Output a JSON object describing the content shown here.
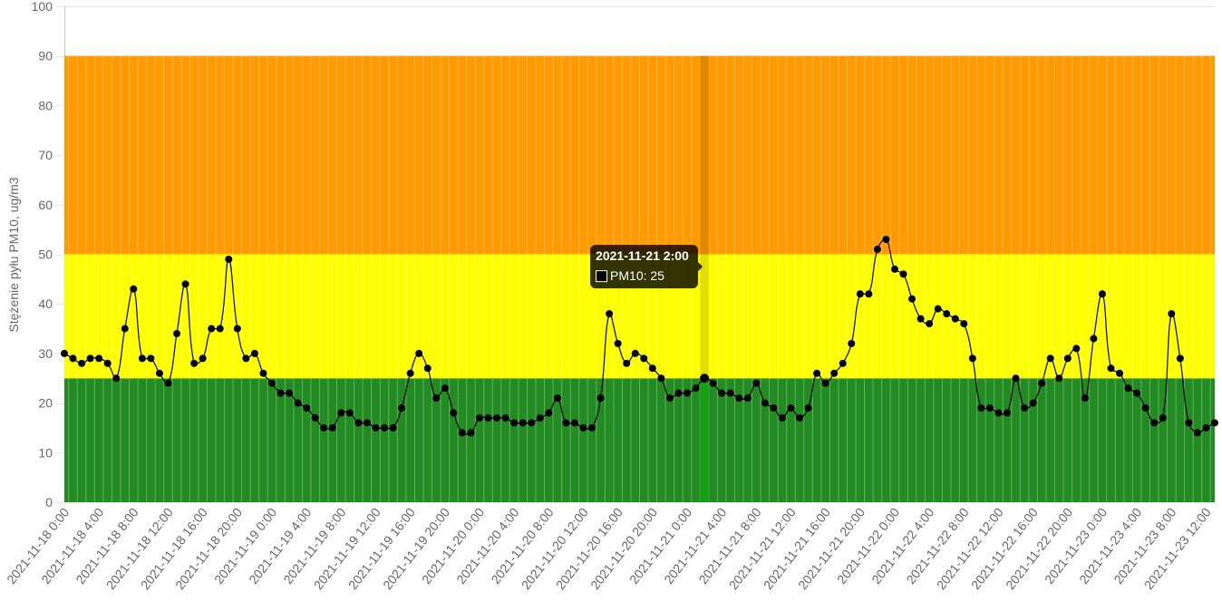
{
  "chart_data": {
    "type": "line",
    "ylabel": "Stężenie pyłu PM10, ug/m3",
    "ylim": [
      0,
      100
    ],
    "y_ticks": [
      0,
      10,
      20,
      30,
      40,
      50,
      60,
      70,
      80,
      90,
      100
    ],
    "y_grid": true,
    "x": [
      "2021-11-18 0:00",
      "2021-11-18 1:00",
      "2021-11-18 2:00",
      "2021-11-18 3:00",
      "2021-11-18 4:00",
      "2021-11-18 5:00",
      "2021-11-18 6:00",
      "2021-11-18 7:00",
      "2021-11-18 8:00",
      "2021-11-18 9:00",
      "2021-11-18 10:00",
      "2021-11-18 11:00",
      "2021-11-18 12:00",
      "2021-11-18 13:00",
      "2021-11-18 14:00",
      "2021-11-18 15:00",
      "2021-11-18 16:00",
      "2021-11-18 17:00",
      "2021-11-18 18:00",
      "2021-11-18 19:00",
      "2021-11-18 20:00",
      "2021-11-18 21:00",
      "2021-11-18 22:00",
      "2021-11-18 23:00",
      "2021-11-19 0:00",
      "2021-11-19 1:00",
      "2021-11-19 2:00",
      "2021-11-19 3:00",
      "2021-11-19 4:00",
      "2021-11-19 5:00",
      "2021-11-19 6:00",
      "2021-11-19 7:00",
      "2021-11-19 8:00",
      "2021-11-19 9:00",
      "2021-11-19 10:00",
      "2021-11-19 11:00",
      "2021-11-19 12:00",
      "2021-11-19 13:00",
      "2021-11-19 14:00",
      "2021-11-19 15:00",
      "2021-11-19 16:00",
      "2021-11-19 17:00",
      "2021-11-19 18:00",
      "2021-11-19 19:00",
      "2021-11-19 20:00",
      "2021-11-19 21:00",
      "2021-11-19 22:00",
      "2021-11-19 23:00",
      "2021-11-20 0:00",
      "2021-11-20 1:00",
      "2021-11-20 2:00",
      "2021-11-20 3:00",
      "2021-11-20 4:00",
      "2021-11-20 5:00",
      "2021-11-20 6:00",
      "2021-11-20 7:00",
      "2021-11-20 8:00",
      "2021-11-20 9:00",
      "2021-11-20 10:00",
      "2021-11-20 11:00",
      "2021-11-20 12:00",
      "2021-11-20 13:00",
      "2021-11-20 14:00",
      "2021-11-20 15:00",
      "2021-11-20 16:00",
      "2021-11-20 17:00",
      "2021-11-20 18:00",
      "2021-11-20 19:00",
      "2021-11-20 20:00",
      "2021-11-20 21:00",
      "2021-11-20 22:00",
      "2021-11-20 23:00",
      "2021-11-21 0:00",
      "2021-11-21 1:00",
      "2021-11-21 2:00",
      "2021-11-21 3:00",
      "2021-11-21 4:00",
      "2021-11-21 5:00",
      "2021-11-21 6:00",
      "2021-11-21 7:00",
      "2021-11-21 8:00",
      "2021-11-21 9:00",
      "2021-11-21 10:00",
      "2021-11-21 11:00",
      "2021-11-21 12:00",
      "2021-11-21 13:00",
      "2021-11-21 14:00",
      "2021-11-21 15:00",
      "2021-11-21 16:00",
      "2021-11-21 17:00",
      "2021-11-21 18:00",
      "2021-11-21 19:00",
      "2021-11-21 20:00",
      "2021-11-21 21:00",
      "2021-11-21 22:00",
      "2021-11-21 23:00",
      "2021-11-22 0:00",
      "2021-11-22 1:00",
      "2021-11-22 2:00",
      "2021-11-22 3:00",
      "2021-11-22 4:00",
      "2021-11-22 5:00",
      "2021-11-22 6:00",
      "2021-11-22 7:00",
      "2021-11-22 8:00",
      "2021-11-22 9:00",
      "2021-11-22 10:00",
      "2021-11-22 11:00",
      "2021-11-22 12:00",
      "2021-11-22 13:00",
      "2021-11-22 14:00",
      "2021-11-22 15:00",
      "2021-11-22 16:00",
      "2021-11-22 17:00",
      "2021-11-22 18:00",
      "2021-11-22 19:00",
      "2021-11-22 20:00",
      "2021-11-22 21:00",
      "2021-11-22 22:00",
      "2021-11-22 23:00",
      "2021-11-23 0:00",
      "2021-11-23 1:00",
      "2021-11-23 2:00",
      "2021-11-23 3:00",
      "2021-11-23 4:00",
      "2021-11-23 5:00",
      "2021-11-23 6:00",
      "2021-11-23 7:00",
      "2021-11-23 8:00",
      "2021-11-23 9:00",
      "2021-11-23 10:00",
      "2021-11-23 11:00",
      "2021-11-23 12:00",
      "2021-11-23 13:00"
    ],
    "x_tick_labels": [
      "2021-11-18 0:00",
      "2021-11-18 4:00",
      "2021-11-18 8:00",
      "2021-11-18 12:00",
      "2021-11-18 16:00",
      "2021-11-18 20:00",
      "2021-11-19 0:00",
      "2021-11-19 4:00",
      "2021-11-19 8:00",
      "2021-11-19 12:00",
      "2021-11-19 16:00",
      "2021-11-19 20:00",
      "2021-11-20 0:00",
      "2021-11-20 4:00",
      "2021-11-20 8:00",
      "2021-11-20 12:00",
      "2021-11-20 16:00",
      "2021-11-20 20:00",
      "2021-11-21 0:00",
      "2021-11-21 4:00",
      "2021-11-21 8:00",
      "2021-11-21 12:00",
      "2021-11-21 16:00",
      "2021-11-21 20:00",
      "2021-11-22 0:00",
      "2021-11-22 4:00",
      "2021-11-22 8:00",
      "2021-11-22 12:00",
      "2021-11-22 16:00",
      "2021-11-22 20:00",
      "2021-11-23 0:00",
      "2021-11-23 4:00",
      "2021-11-23 8:00",
      "2021-11-23 12:00"
    ],
    "series": [
      {
        "name": "PM10",
        "color": "#000000",
        "values": [
          30,
          29,
          28,
          29,
          29,
          28,
          25,
          35,
          43,
          29,
          29,
          26,
          24,
          34,
          44,
          28,
          29,
          35,
          35,
          49,
          35,
          29,
          30,
          26,
          24,
          22,
          22,
          20,
          19,
          17,
          15,
          15,
          18,
          18,
          16,
          16,
          15,
          15,
          15,
          19,
          26,
          30,
          27,
          21,
          23,
          18,
          14,
          14,
          17,
          17,
          17,
          17,
          16,
          16,
          16,
          17,
          18,
          21,
          16,
          16,
          15,
          15,
          21,
          38,
          32,
          28,
          30,
          29,
          27,
          25,
          21,
          22,
          22,
          23,
          25,
          24,
          22,
          22,
          21,
          21,
          24,
          20,
          19,
          17,
          19,
          17,
          19,
          26,
          24,
          26,
          28,
          32,
          42,
          42,
          51,
          53,
          47,
          46,
          41,
          37,
          36,
          39,
          38,
          37,
          36,
          29,
          19,
          19,
          18,
          18,
          25,
          19,
          20,
          24,
          29,
          25,
          29,
          31,
          21,
          33,
          42,
          27,
          26,
          23,
          22,
          19,
          16,
          17,
          38,
          29,
          16,
          14,
          15,
          16
        ]
      }
    ],
    "bands": [
      {
        "from": 0,
        "to": 25,
        "color": "#228B22",
        "hover_color": "#14A014"
      },
      {
        "from": 25,
        "to": 50,
        "color": "#FFFF00",
        "hover_color": "#E2DE00"
      },
      {
        "from": 50,
        "to": 90,
        "color": "#FF9A00",
        "hover_color": "#E08800"
      }
    ],
    "tooltip": {
      "title": "2021-11-21 2:00",
      "body": "PM10: 25",
      "background": "rgba(0,0,0,0.8)"
    }
  }
}
